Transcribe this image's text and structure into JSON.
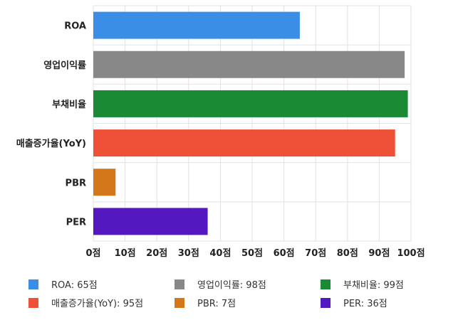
{
  "chart_data": {
    "type": "bar",
    "orientation": "horizontal",
    "categories": [
      "ROA",
      "영업이익률",
      "부채비율",
      "매출증가율(YoY)",
      "PBR",
      "PER"
    ],
    "values": [
      65,
      98,
      99,
      95,
      7,
      36
    ],
    "colors": [
      "#3a8ee6",
      "#888888",
      "#1a8a34",
      "#ee5038",
      "#d4771a",
      "#5418c0"
    ],
    "xlim": [
      0,
      100
    ],
    "xticks": [
      0,
      10,
      20,
      30,
      40,
      50,
      60,
      70,
      80,
      90,
      100
    ],
    "tick_suffix": "점",
    "grid": true,
    "legend_position": "bottom",
    "legend": [
      {
        "label": "ROA: 65점",
        "color": "#3a8ee6"
      },
      {
        "label": "영업이익률: 98점",
        "color": "#888888"
      },
      {
        "label": "부채비율: 99점",
        "color": "#1a8a34"
      },
      {
        "label": "매출증가율(YoY): 95점",
        "color": "#ee5038"
      },
      {
        "label": "PBR: 7점",
        "color": "#d4771a"
      },
      {
        "label": "PER: 36점",
        "color": "#5418c0"
      }
    ]
  }
}
